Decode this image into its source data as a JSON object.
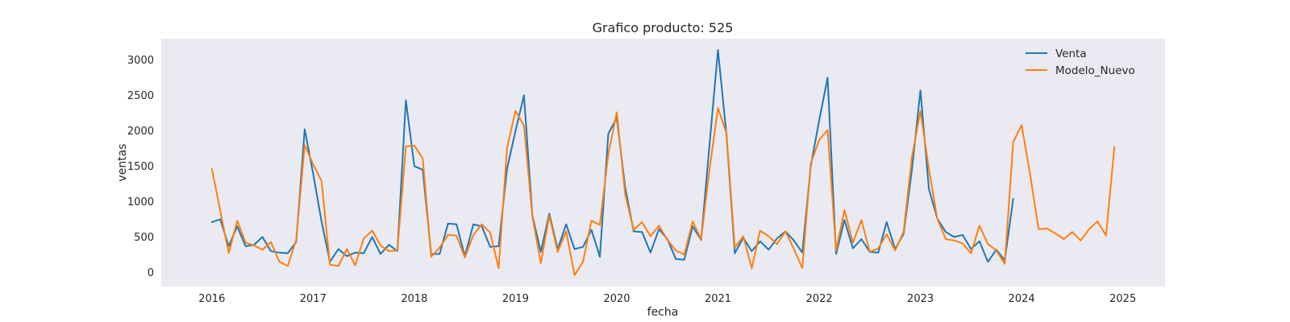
{
  "chart_data": {
    "type": "line",
    "title": "Grafico producto: 525",
    "xlabel": "fecha",
    "ylabel": "ventas",
    "x_ticks": [
      "2016",
      "2017",
      "2018",
      "2019",
      "2020",
      "2021",
      "2022",
      "2023",
      "2024",
      "2025"
    ],
    "y_ticks": [
      "0",
      "500",
      "1000",
      "1500",
      "2000",
      "2500",
      "3000"
    ],
    "ylim": [
      -200,
      3300
    ],
    "xlim": [
      "2015-07",
      "2025-06"
    ],
    "grid": false,
    "legend": "top-right",
    "background": "#eaeaf2",
    "series": [
      {
        "name": "Venta",
        "color": "#1f77b4",
        "x": [
          "2016-01",
          "2016-02",
          "2016-03",
          "2016-04",
          "2016-05",
          "2016-06",
          "2016-07",
          "2016-08",
          "2016-09",
          "2016-10",
          "2016-11",
          "2016-12",
          "2017-01",
          "2017-02",
          "2017-03",
          "2017-04",
          "2017-05",
          "2017-06",
          "2017-07",
          "2017-08",
          "2017-09",
          "2017-10",
          "2017-11",
          "2017-12",
          "2018-01",
          "2018-02",
          "2018-03",
          "2018-04",
          "2018-05",
          "2018-06",
          "2018-07",
          "2018-08",
          "2018-09",
          "2018-10",
          "2018-11",
          "2018-12",
          "2019-01",
          "2019-02",
          "2019-03",
          "2019-04",
          "2019-05",
          "2019-06",
          "2019-07",
          "2019-08",
          "2019-09",
          "2019-10",
          "2019-11",
          "2019-12",
          "2020-01",
          "2020-02",
          "2020-03",
          "2020-04",
          "2020-05",
          "2020-06",
          "2020-07",
          "2020-08",
          "2020-09",
          "2020-10",
          "2020-11",
          "2020-12",
          "2021-01",
          "2021-02",
          "2021-03",
          "2021-04",
          "2021-05",
          "2021-06",
          "2021-07",
          "2021-08",
          "2021-09",
          "2021-10",
          "2021-11",
          "2021-12",
          "2022-01",
          "2022-02",
          "2022-03",
          "2022-04",
          "2022-05",
          "2022-06",
          "2022-07",
          "2022-08",
          "2022-09",
          "2022-10",
          "2022-11",
          "2022-12",
          "2023-01",
          "2023-02",
          "2023-03",
          "2023-04",
          "2023-05",
          "2023-06",
          "2023-07",
          "2023-08",
          "2023-09",
          "2023-10",
          "2023-11",
          "2023-12"
        ],
        "values": [
          710,
          750,
          370,
          650,
          370,
          390,
          500,
          300,
          280,
          270,
          430,
          2020,
          1400,
          720,
          150,
          330,
          230,
          280,
          270,
          500,
          260,
          390,
          300,
          2430,
          1500,
          1450,
          260,
          260,
          690,
          680,
          230,
          680,
          650,
          360,
          370,
          1460,
          2000,
          2500,
          800,
          290,
          830,
          330,
          680,
          330,
          360,
          600,
          220,
          1960,
          2180,
          1200,
          580,
          570,
          280,
          610,
          470,
          190,
          180,
          650,
          460,
          1800,
          3140,
          1950,
          270,
          490,
          300,
          440,
          320,
          480,
          580,
          450,
          280,
          1500,
          2150,
          2750,
          260,
          740,
          340,
          470,
          290,
          280,
          710,
          330,
          540,
          1450,
          2570,
          1180,
          760,
          570,
          500,
          530,
          330,
          440,
          150,
          320,
          170,
          1040
        ]
      },
      {
        "name": "Modelo_Nuevo",
        "color": "#ff7f0e",
        "x": [
          "2016-01",
          "2016-02",
          "2016-03",
          "2016-04",
          "2016-05",
          "2016-06",
          "2016-07",
          "2016-08",
          "2016-09",
          "2016-10",
          "2016-11",
          "2016-12",
          "2017-01",
          "2017-02",
          "2017-03",
          "2017-04",
          "2017-05",
          "2017-06",
          "2017-07",
          "2017-08",
          "2017-09",
          "2017-10",
          "2017-11",
          "2017-12",
          "2018-01",
          "2018-02",
          "2018-03",
          "2018-04",
          "2018-05",
          "2018-06",
          "2018-07",
          "2018-08",
          "2018-09",
          "2018-10",
          "2018-11",
          "2018-12",
          "2019-01",
          "2019-02",
          "2019-03",
          "2019-04",
          "2019-05",
          "2019-06",
          "2019-07",
          "2019-08",
          "2019-09",
          "2019-10",
          "2019-11",
          "2019-12",
          "2020-01",
          "2020-02",
          "2020-03",
          "2020-04",
          "2020-05",
          "2020-06",
          "2020-07",
          "2020-08",
          "2020-09",
          "2020-10",
          "2020-11",
          "2020-12",
          "2021-01",
          "2021-02",
          "2021-03",
          "2021-04",
          "2021-05",
          "2021-06",
          "2021-07",
          "2021-08",
          "2021-09",
          "2021-10",
          "2021-11",
          "2021-12",
          "2022-01",
          "2022-02",
          "2022-03",
          "2022-04",
          "2022-05",
          "2022-06",
          "2022-07",
          "2022-08",
          "2022-09",
          "2022-10",
          "2022-11",
          "2022-12",
          "2023-01",
          "2023-02",
          "2023-03",
          "2023-04",
          "2023-05",
          "2023-06",
          "2023-07",
          "2023-08",
          "2023-09",
          "2023-10",
          "2023-11",
          "2023-12",
          "2024-01",
          "2024-02",
          "2024-03",
          "2024-04",
          "2024-05",
          "2024-06",
          "2024-07",
          "2024-08",
          "2024-09",
          "2024-10",
          "2024-11",
          "2024-12"
        ],
        "values": [
          1460,
          870,
          270,
          730,
          420,
          380,
          320,
          430,
          150,
          90,
          460,
          1800,
          1530,
          1290,
          110,
          90,
          330,
          100,
          480,
          590,
          380,
          300,
          310,
          1780,
          1790,
          1610,
          220,
          350,
          530,
          520,
          210,
          530,
          680,
          560,
          60,
          1760,
          2280,
          2070,
          790,
          130,
          800,
          290,
          580,
          -40,
          150,
          730,
          670,
          1670,
          2260,
          1100,
          600,
          710,
          510,
          660,
          460,
          310,
          250,
          720,
          470,
          1450,
          2320,
          1970,
          350,
          510,
          60,
          590,
          510,
          400,
          580,
          330,
          60,
          1540,
          1870,
          2010,
          310,
          880,
          420,
          740,
          290,
          340,
          540,
          310,
          570,
          1630,
          2280,
          1460,
          760,
          470,
          450,
          410,
          270,
          660,
          400,
          310,
          120,
          1840,
          2080,
          1390,
          610,
          620,
          550,
          470,
          570,
          450,
          610,
          720,
          520,
          1770
        ]
      }
    ]
  }
}
